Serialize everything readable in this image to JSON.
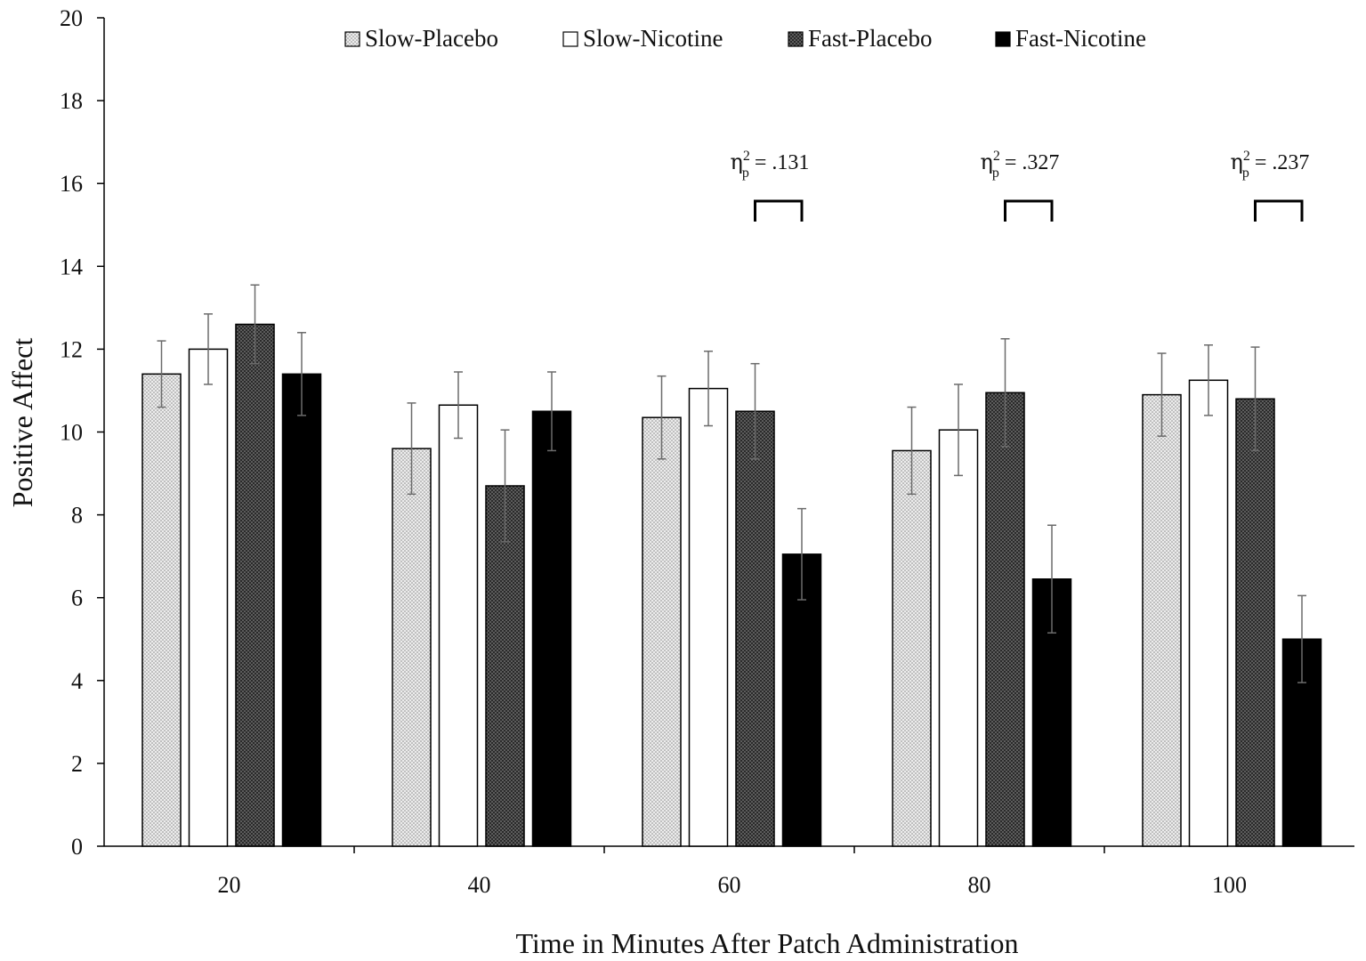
{
  "chart_data": {
    "type": "bar",
    "title": "",
    "xlabel": "Time in Minutes After Patch Administration",
    "ylabel": "Positive Affect",
    "ylim": [
      0,
      20
    ],
    "yticks": [
      "0",
      "2",
      "4",
      "6",
      "8",
      "10",
      "12",
      "14",
      "16",
      "18",
      "20"
    ],
    "categories": [
      "20",
      "40",
      "60",
      "80",
      "100"
    ],
    "legend_position": "top",
    "series": [
      {
        "name": "Slow-Placebo",
        "pattern": "light-dots",
        "color": "#d8d8d8",
        "values": [
          11.4,
          9.6,
          10.35,
          9.55,
          10.9
        ],
        "errors": [
          0.8,
          1.1,
          1.0,
          1.05,
          1.0
        ]
      },
      {
        "name": "Slow-Nicotine",
        "pattern": "none",
        "color": "#ffffff",
        "values": [
          12.0,
          10.65,
          11.05,
          10.05,
          11.25
        ],
        "errors": [
          0.85,
          0.8,
          0.9,
          1.1,
          0.85
        ]
      },
      {
        "name": "Fast-Placebo",
        "pattern": "dark-dots",
        "color": "#3a3a3a",
        "values": [
          12.6,
          8.7,
          10.5,
          10.95,
          10.8
        ],
        "errors": [
          0.95,
          1.35,
          1.15,
          1.3,
          1.25
        ]
      },
      {
        "name": "Fast-Nicotine",
        "pattern": "none",
        "color": "#000000",
        "values": [
          11.4,
          10.5,
          7.05,
          6.45,
          5.0
        ],
        "errors": [
          1.0,
          0.95,
          1.1,
          1.3,
          1.05
        ]
      }
    ],
    "annotations": [
      {
        "category": "60",
        "symbol": "η",
        "sub": "p",
        "sup": "2",
        "text": " = .131"
      },
      {
        "category": "80",
        "symbol": "η",
        "sub": "p",
        "sup": "2",
        "text": " = .327"
      },
      {
        "category": "100",
        "symbol": "η",
        "sub": "p",
        "sup": "2",
        "text": " = .237"
      }
    ]
  }
}
